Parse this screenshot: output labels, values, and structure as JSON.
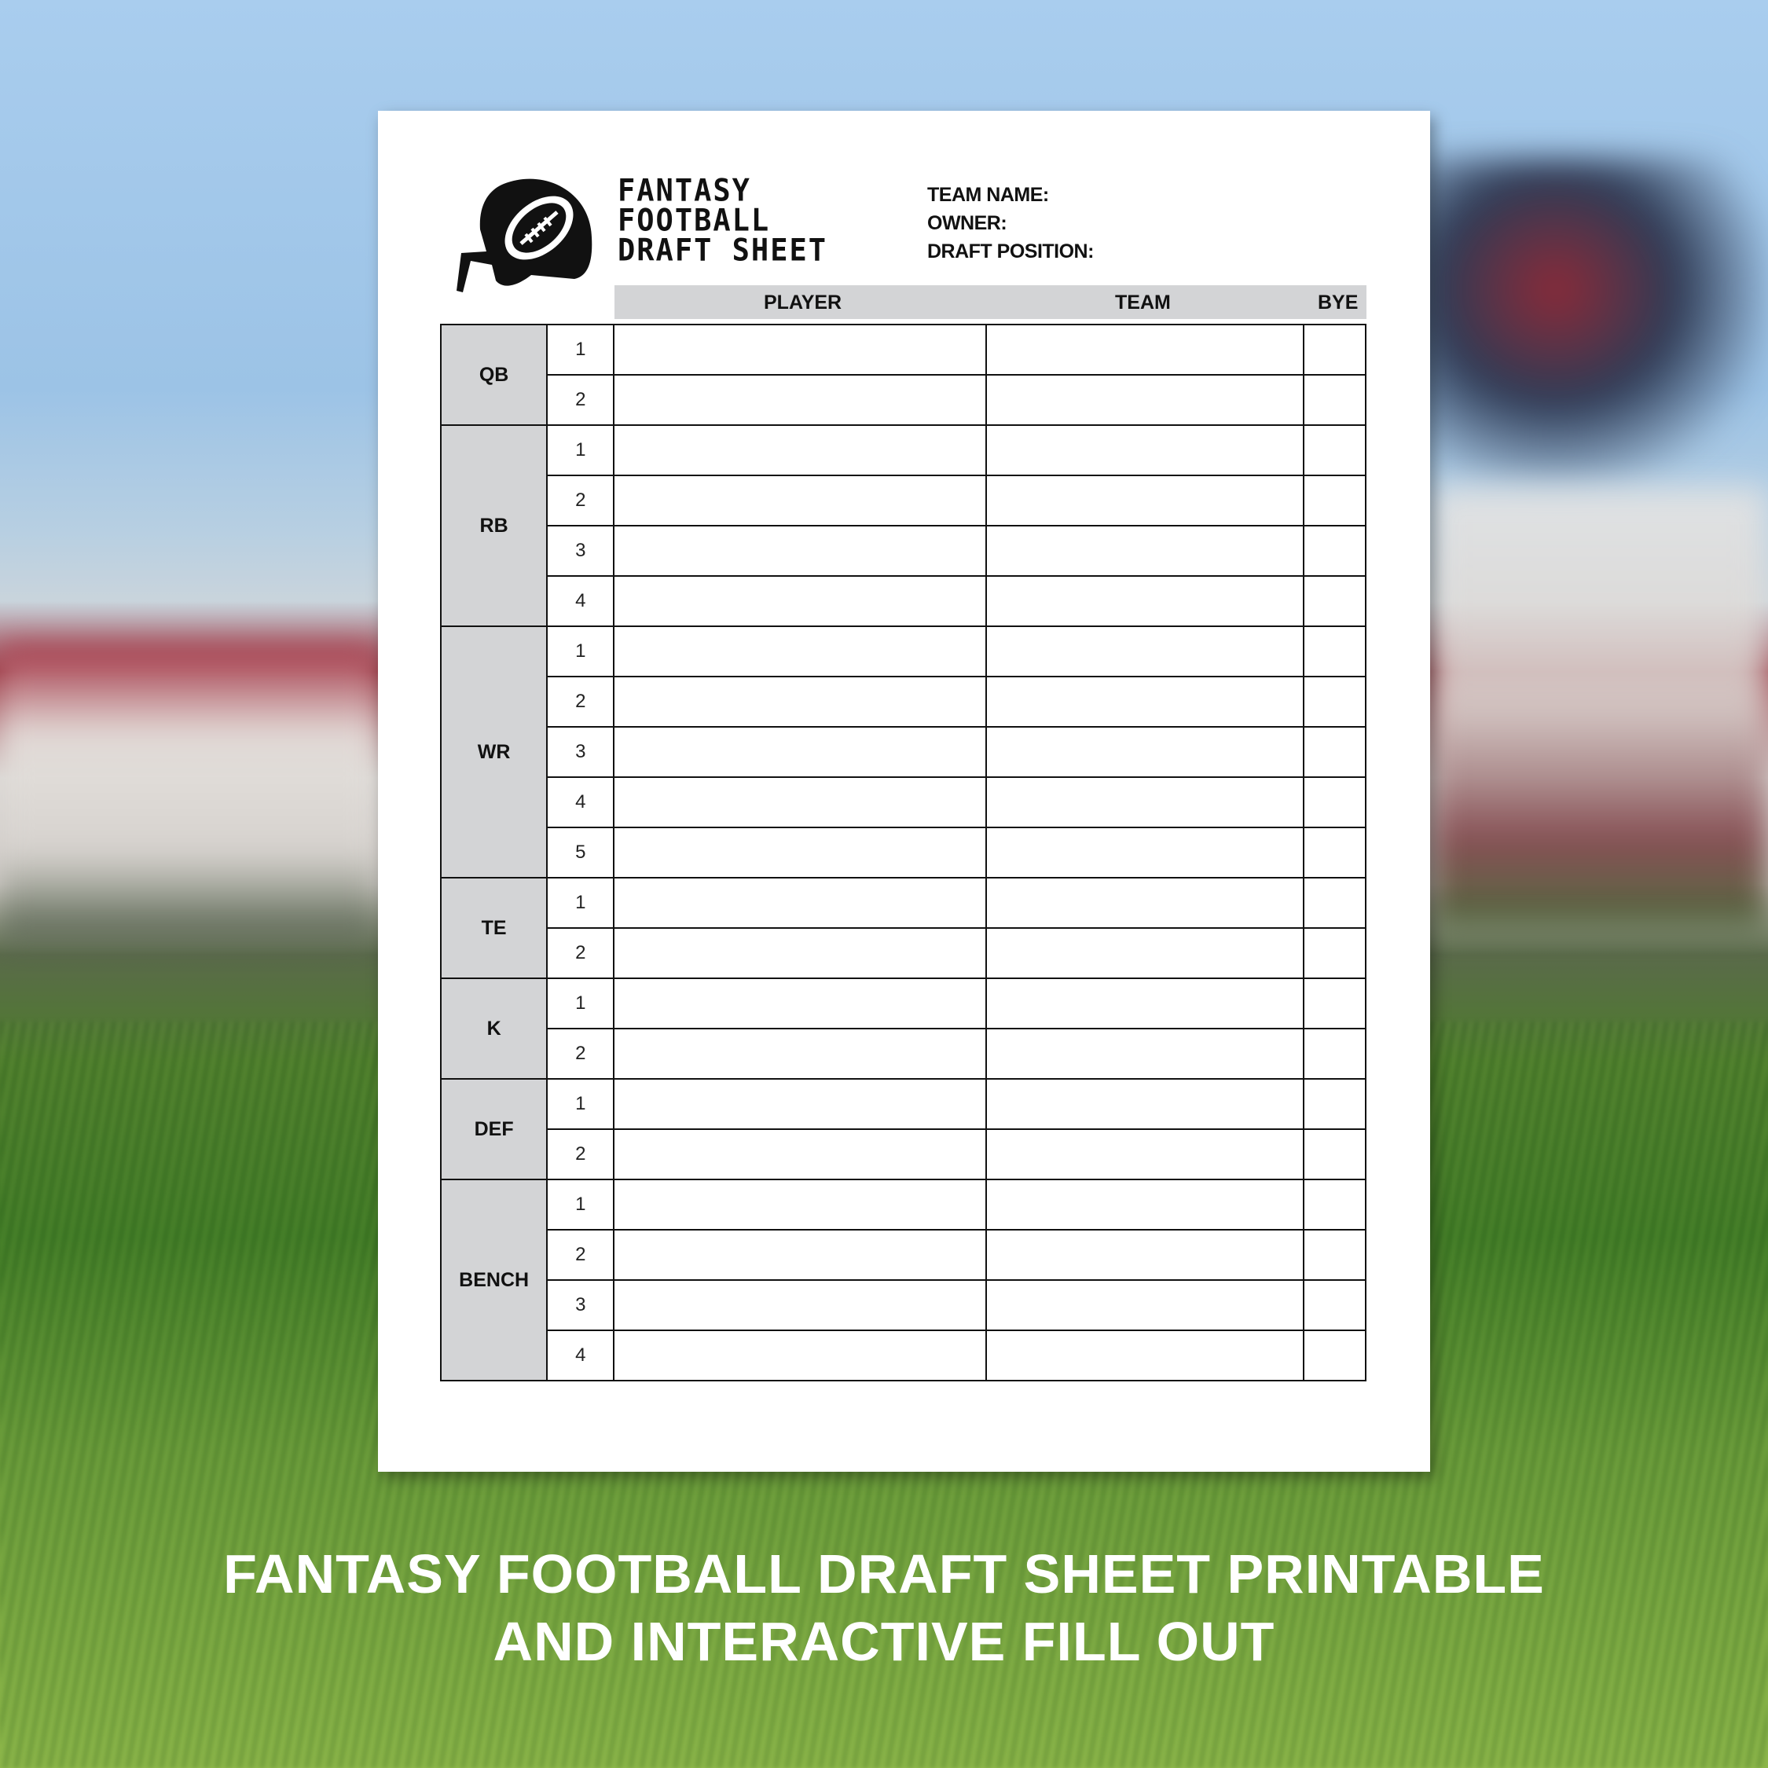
{
  "sheet": {
    "title_lines": [
      "FANTASY",
      "FOOTBALL",
      "DRAFT SHEET"
    ],
    "fields": [
      "TEAM NAME:",
      "OWNER:",
      "DRAFT POSITION:"
    ],
    "columns": {
      "player": "PLAYER",
      "team": "TEAM",
      "bye": "BYE"
    },
    "groups": [
      {
        "position": "QB",
        "slots": [
          "1",
          "2"
        ]
      },
      {
        "position": "RB",
        "slots": [
          "1",
          "2",
          "3",
          "4"
        ]
      },
      {
        "position": "WR",
        "slots": [
          "1",
          "2",
          "3",
          "4",
          "5"
        ]
      },
      {
        "position": "TE",
        "slots": [
          "1",
          "2"
        ]
      },
      {
        "position": "K",
        "slots": [
          "1",
          "2"
        ]
      },
      {
        "position": "DEF",
        "slots": [
          "1",
          "2"
        ]
      },
      {
        "position": "BENCH",
        "slots": [
          "1",
          "2",
          "3",
          "4"
        ]
      }
    ],
    "logo_icon": "football-helmet-icon",
    "header_gray": "#d3d4d6"
  },
  "caption": {
    "line1": "FANTASY FOOTBALL DRAFT SHEET PRINTABLE",
    "line2": "AND INTERACTIVE FILL OUT"
  }
}
